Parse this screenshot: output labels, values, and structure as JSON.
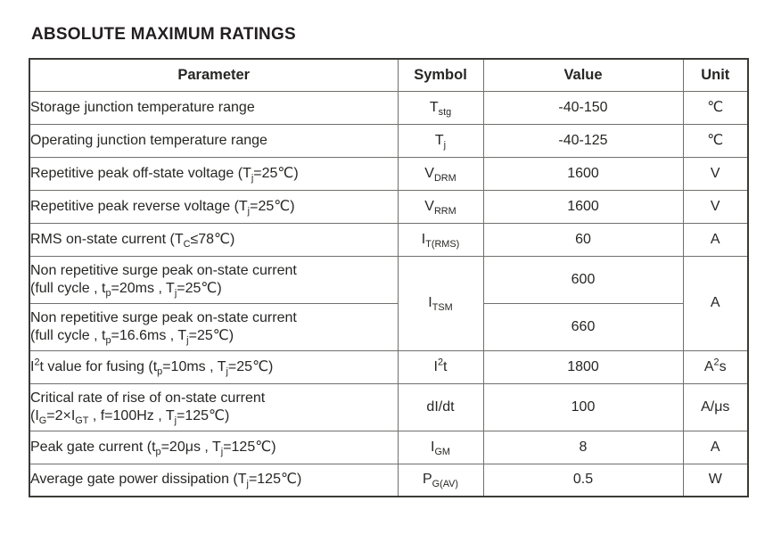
{
  "title": "ABSOLUTE MAXIMUM RATINGS",
  "colors": {
    "outer_border": "#3b3b36",
    "inner_border": "#6f6f6c",
    "text": "#262624",
    "title": "#231f20",
    "background": "#ffffff"
  },
  "table": {
    "columns": [
      "Parameter",
      "Symbol",
      "Value",
      "Unit"
    ],
    "rows": [
      {
        "param": [
          {
            "t": "Storage junction temperature range"
          }
        ],
        "symbol": [
          {
            "t": "T"
          },
          {
            "t": "stg",
            "s": "sub"
          }
        ],
        "value": [
          {
            "t": "-40-150"
          }
        ],
        "unit": [
          {
            "t": "℃"
          }
        ]
      },
      {
        "param": [
          {
            "t": "Operating junction temperature range"
          }
        ],
        "symbol": [
          {
            "t": "T"
          },
          {
            "t": "j",
            "s": "sub"
          }
        ],
        "value": [
          {
            "t": "-40-125"
          }
        ],
        "unit": [
          {
            "t": "℃"
          }
        ]
      },
      {
        "param": [
          {
            "t": "Repetitive peak off-state voltage (T"
          },
          {
            "t": "j",
            "s": "sub"
          },
          {
            "t": "=25℃)"
          }
        ],
        "symbol": [
          {
            "t": "V"
          },
          {
            "t": "DRM",
            "s": "sub"
          }
        ],
        "value": [
          {
            "t": "1600"
          }
        ],
        "unit": [
          {
            "t": "V"
          }
        ]
      },
      {
        "param": [
          {
            "t": "Repetitive peak reverse voltage (T"
          },
          {
            "t": "j",
            "s": "sub"
          },
          {
            "t": "=25℃)"
          }
        ],
        "symbol": [
          {
            "t": "V"
          },
          {
            "t": "RRM",
            "s": "sub"
          }
        ],
        "value": [
          {
            "t": "1600"
          }
        ],
        "unit": [
          {
            "t": "V"
          }
        ]
      },
      {
        "param": [
          {
            "t": "RMS on-state current (T"
          },
          {
            "t": "C",
            "s": "sub"
          },
          {
            "t": "≤78℃)"
          }
        ],
        "symbol": [
          {
            "t": "I"
          },
          {
            "t": "T(RMS)",
            "s": "sub"
          }
        ],
        "value": [
          {
            "t": "60"
          }
        ],
        "unit": [
          {
            "t": "A"
          }
        ]
      },
      {
        "type": "group",
        "params": [
          [
            {
              "t": "Non repetitive surge peak on-state current"
            },
            {
              "br": true
            },
            {
              "t": "(full cycle , t"
            },
            {
              "t": "p",
              "s": "sub"
            },
            {
              "t": "=20ms , T"
            },
            {
              "t": "j",
              "s": "sub"
            },
            {
              "t": "=25℃)"
            }
          ],
          [
            {
              "t": "Non repetitive surge peak on-state current"
            },
            {
              "br": true
            },
            {
              "t": "(full cycle , t"
            },
            {
              "t": "p",
              "s": "sub"
            },
            {
              "t": "=16.6ms , T"
            },
            {
              "t": "j",
              "s": "sub"
            },
            {
              "t": "=25℃)"
            }
          ]
        ],
        "symbol": [
          {
            "t": "I"
          },
          {
            "t": "TSM",
            "s": "sub"
          }
        ],
        "values": [
          [
            {
              "t": "600"
            }
          ],
          [
            {
              "t": "660"
            }
          ]
        ],
        "unit": [
          {
            "t": "A"
          }
        ]
      },
      {
        "param": [
          {
            "t": "I"
          },
          {
            "t": "2",
            "s": "sup"
          },
          {
            "t": "t value for fusing (t"
          },
          {
            "t": "p",
            "s": "sub"
          },
          {
            "t": "=10ms , T"
          },
          {
            "t": "j",
            "s": "sub"
          },
          {
            "t": "=25℃)"
          }
        ],
        "symbol": [
          {
            "t": "I"
          },
          {
            "t": "2",
            "s": "sup"
          },
          {
            "t": "t"
          }
        ],
        "value": [
          {
            "t": "1800"
          }
        ],
        "unit": [
          {
            "t": "A"
          },
          {
            "t": "2",
            "s": "sup"
          },
          {
            "t": "s"
          }
        ]
      },
      {
        "param": [
          {
            "t": "Critical rate of rise of on-state current"
          },
          {
            "br": true
          },
          {
            "t": "(I"
          },
          {
            "t": "G",
            "s": "sub"
          },
          {
            "t": "=2×I"
          },
          {
            "t": "GT",
            "s": "sub"
          },
          {
            "t": " , f=100Hz , T"
          },
          {
            "t": "j",
            "s": "sub"
          },
          {
            "t": "=125℃)"
          }
        ],
        "symbol": [
          {
            "t": "dI/dt"
          }
        ],
        "value": [
          {
            "t": "100"
          }
        ],
        "unit": [
          {
            "t": "A/μs"
          }
        ]
      },
      {
        "param": [
          {
            "t": "Peak gate current (t"
          },
          {
            "t": "p",
            "s": "sub"
          },
          {
            "t": "=20μs , T"
          },
          {
            "t": "j",
            "s": "sub"
          },
          {
            "t": "=125℃)"
          }
        ],
        "symbol": [
          {
            "t": "I"
          },
          {
            "t": "GM",
            "s": "sub"
          }
        ],
        "value": [
          {
            "t": "8"
          }
        ],
        "unit": [
          {
            "t": "A"
          }
        ]
      },
      {
        "param": [
          {
            "t": "Average gate power dissipation (T"
          },
          {
            "t": "j",
            "s": "sub"
          },
          {
            "t": "=125℃)"
          }
        ],
        "symbol": [
          {
            "t": "P"
          },
          {
            "t": "G(AV)",
            "s": "sub"
          }
        ],
        "value": [
          {
            "t": "0.5"
          }
        ],
        "unit": [
          {
            "t": "W"
          }
        ]
      }
    ]
  }
}
